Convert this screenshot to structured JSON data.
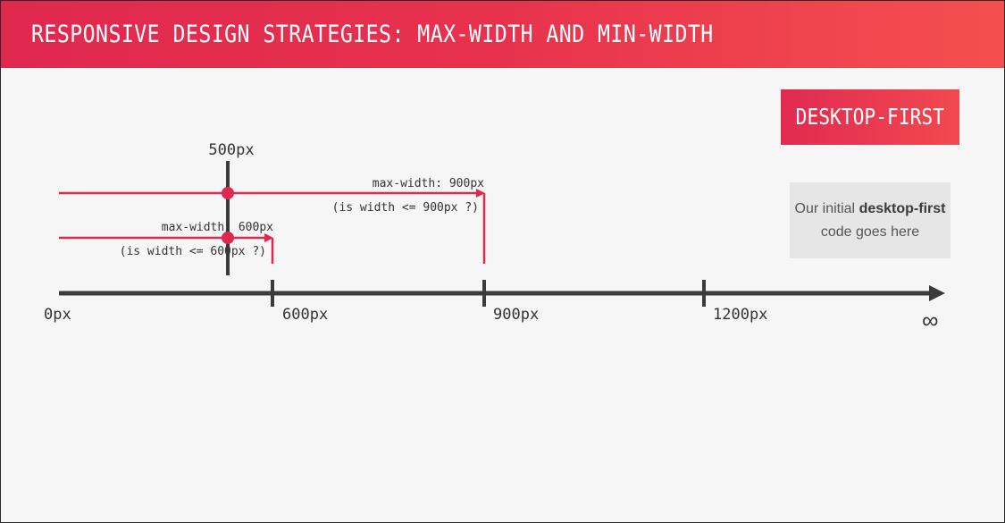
{
  "header": {
    "title": "RESPONSIVE DESIGN STRATEGIES: MAX-WIDTH AND MIN-WIDTH"
  },
  "badge": {
    "label": "DESKTOP-FIRST"
  },
  "note": {
    "prefix": "Our initial",
    "bold": "desktop-first",
    "suffix": "code goes here"
  },
  "axis": {
    "labels": [
      "0px",
      "600px",
      "900px",
      "1200px"
    ],
    "end_label": "∞"
  },
  "marker": {
    "label": "500px"
  },
  "queries": [
    {
      "label": "max-width: 900px",
      "condition": "(is width  <= 900px ?)"
    },
    {
      "label": "max-width: 600px",
      "condition": "(is width  <= 600px ?)"
    }
  ],
  "colors": {
    "accent": "#e0284f",
    "line": "#3b3b3b",
    "marker_dot": "#e0284f"
  }
}
